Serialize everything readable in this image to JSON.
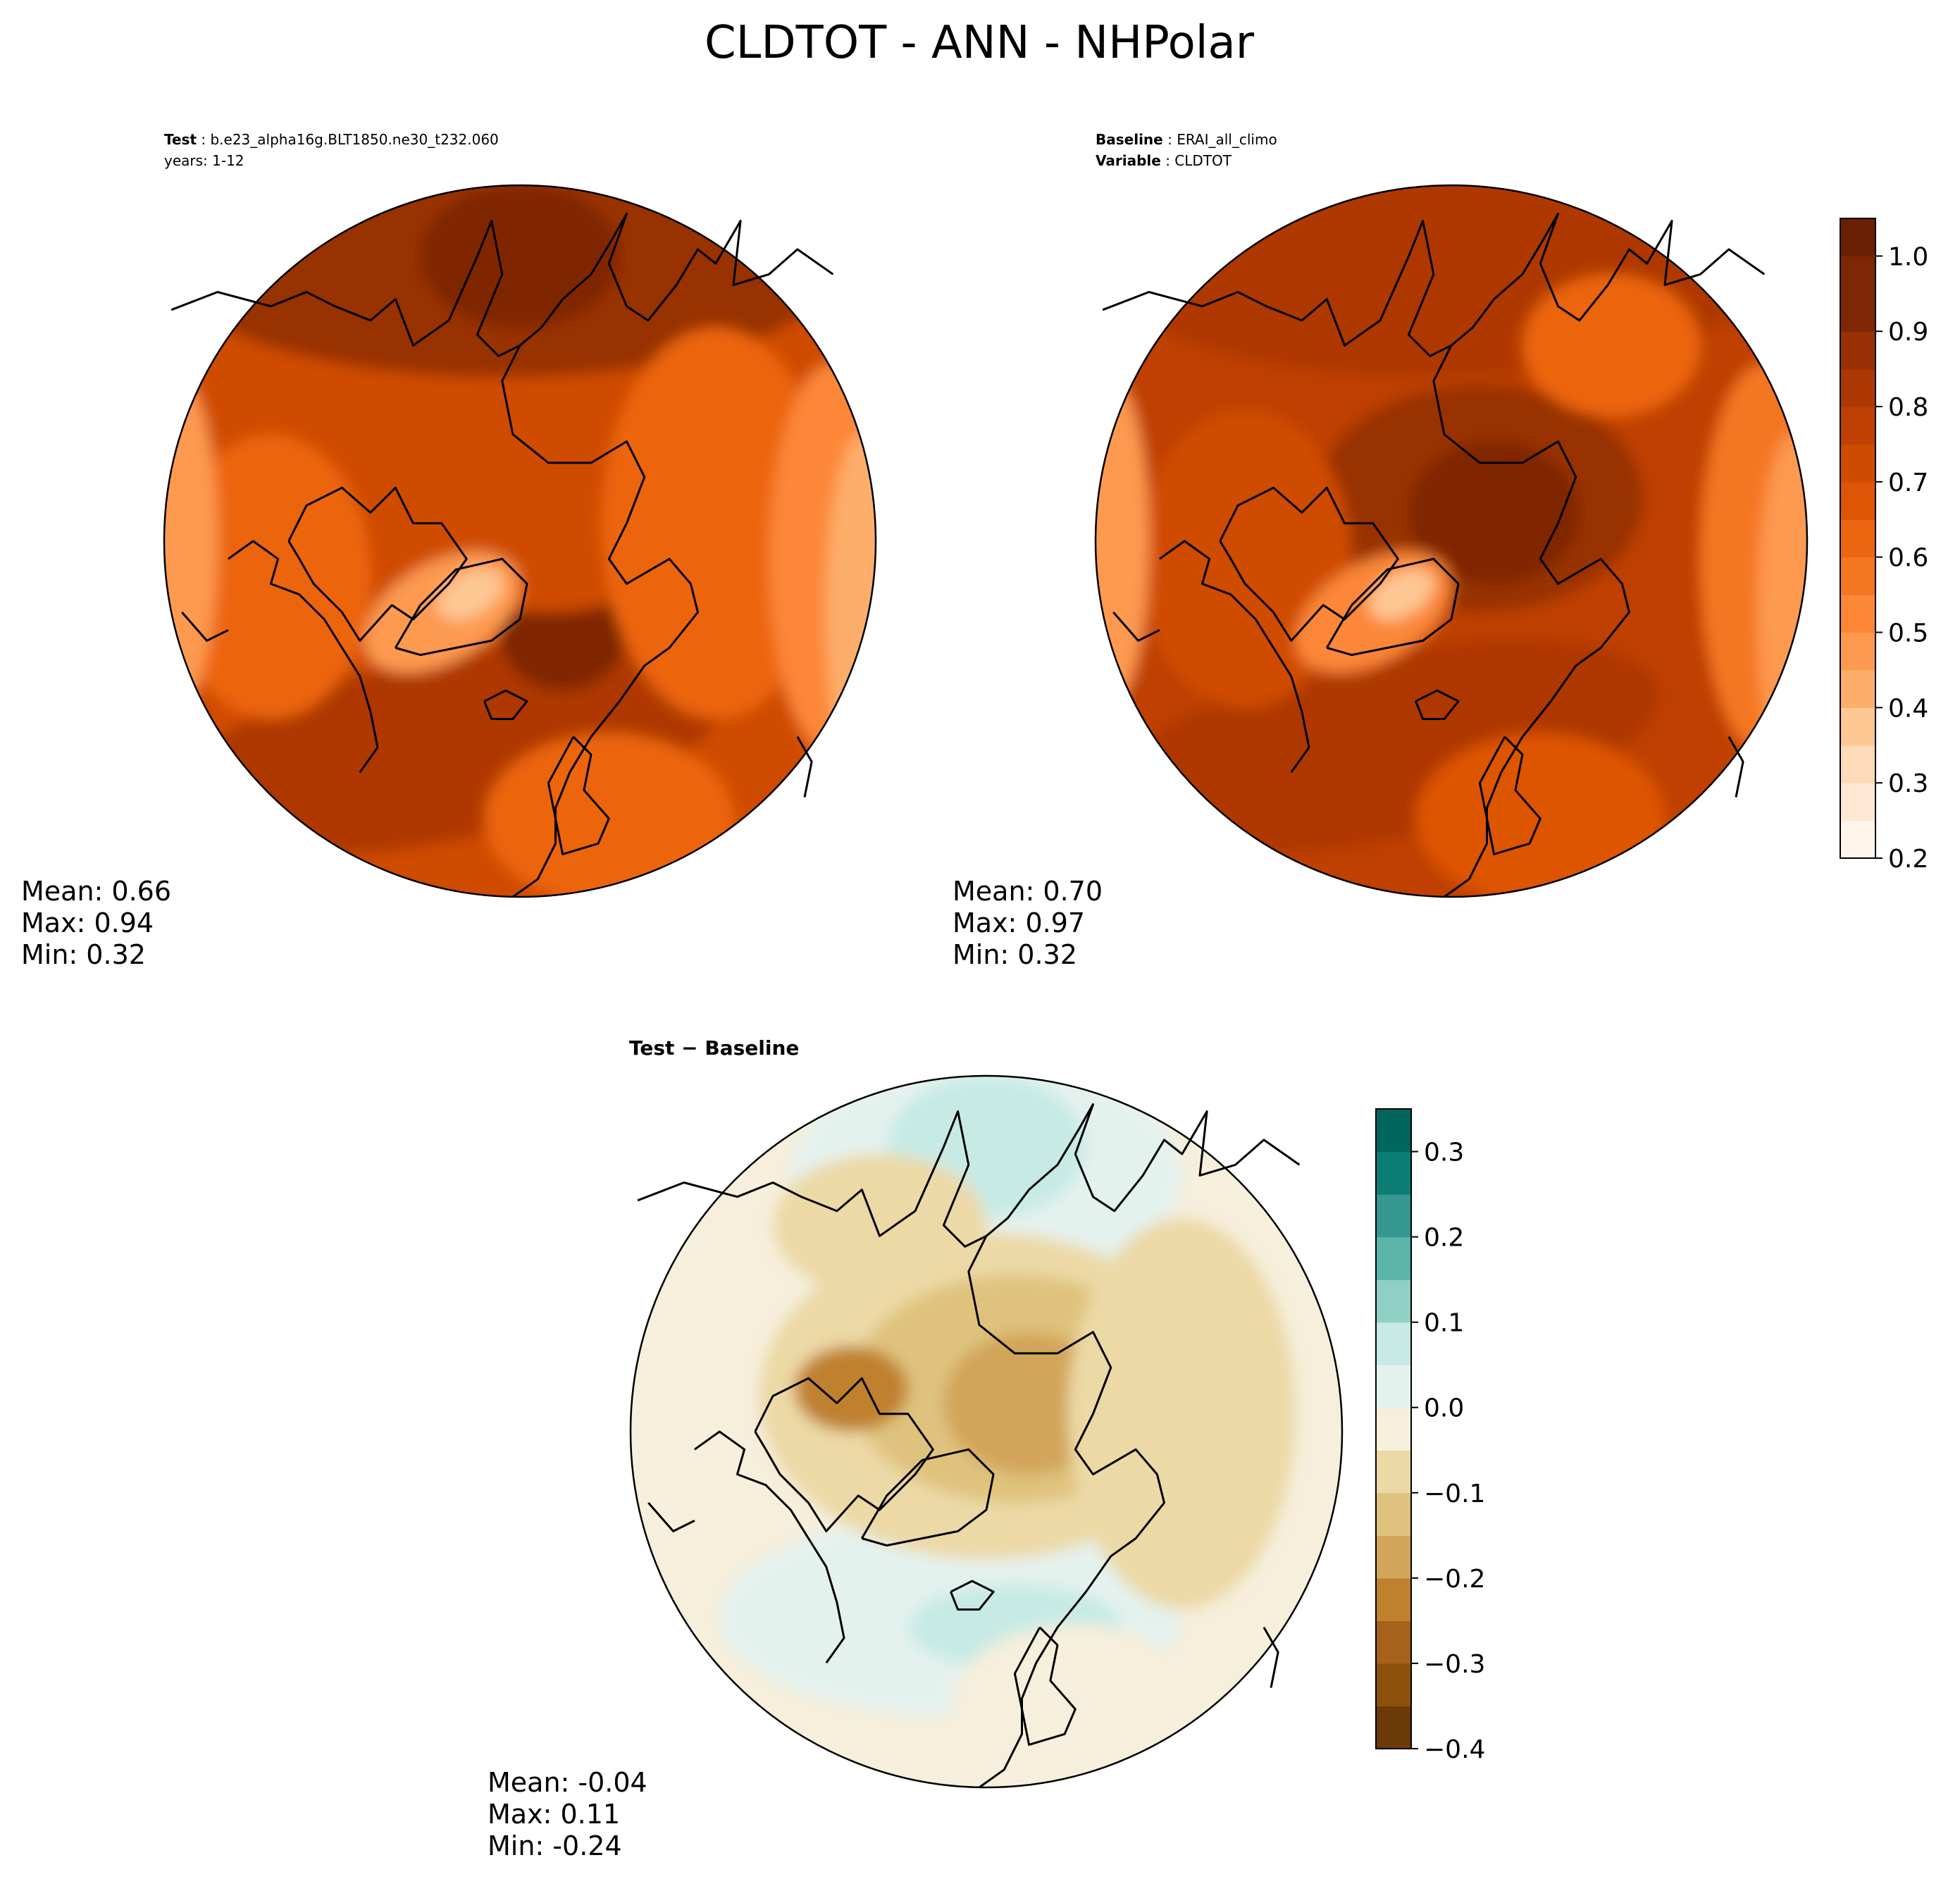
{
  "title": "CLDTOT - ANN - NHPolar",
  "chart_data": [
    {
      "type": "heatmap",
      "projection": "north-polar-stereographic",
      "panel": "test",
      "header": [
        {
          "label": "Test",
          "value": "b.e23_alpha16g.BLT1850.ne30_t232.060"
        },
        {
          "label": "",
          "value": "years: 1-12"
        }
      ],
      "stats": {
        "mean": "Mean:  0.66",
        "max": "Max:  0.94",
        "min": "Min:  0.32"
      },
      "colorbar": "shared-right",
      "regions": [
        {
          "name": "background",
          "value": 0.72
        },
        {
          "name": "pacific-band",
          "value": 0.85
        },
        {
          "name": "pacific-core",
          "value": 0.93
        },
        {
          "name": "atlantic-band",
          "value": 0.83
        },
        {
          "name": "greenland-sea",
          "value": 0.9
        },
        {
          "name": "arctic-ocean",
          "value": 0.74
        },
        {
          "name": "canada-south",
          "value": 0.64
        },
        {
          "name": "europe",
          "value": 0.6
        },
        {
          "name": "siberia",
          "value": 0.6
        },
        {
          "name": "greenland",
          "value": 0.48
        },
        {
          "name": "greenland-summit",
          "value": 0.36
        },
        {
          "name": "asia-interior",
          "value": 0.52
        },
        {
          "name": "rim-west",
          "value": 0.46
        },
        {
          "name": "rim-east",
          "value": 0.44
        }
      ]
    },
    {
      "type": "heatmap",
      "projection": "north-polar-stereographic",
      "panel": "baseline",
      "header": [
        {
          "label": "Baseline",
          "value": "ERAI_all_climo"
        },
        {
          "label": "Variable",
          "value": "CLDTOT"
        }
      ],
      "stats": {
        "mean": "Mean:  0.70",
        "max": "Max:  0.97",
        "min": "Min:  0.32"
      },
      "colorbar": {
        "levels": [
          0.2,
          0.25,
          0.3,
          0.35,
          0.4,
          0.45,
          0.5,
          0.55,
          0.6,
          0.65,
          0.7,
          0.75,
          0.8,
          0.85,
          0.9,
          0.95,
          1.0,
          1.05
        ],
        "colors": [
          "#fff5eb",
          "#fee8d3",
          "#fddbb8",
          "#fdc794",
          "#fdae6b",
          "#fd9a50",
          "#fc8737",
          "#f57622",
          "#ec6511",
          "#de5506",
          "#cf4b02",
          "#bf4002",
          "#ae3803",
          "#983004",
          "#7f2704",
          "#7f2704",
          "#6b2003"
        ],
        "ticks": [
          "0.2",
          "0.3",
          "0.4",
          "0.5",
          "0.6",
          "0.7",
          "0.8",
          "0.9",
          "1.0"
        ],
        "range": [
          0.2,
          1.05
        ]
      },
      "regions": [
        {
          "name": "background",
          "value": 0.76
        },
        {
          "name": "pacific-band",
          "value": 0.83
        },
        {
          "name": "atlantic-band",
          "value": 0.82
        },
        {
          "name": "arctic-ocean",
          "value": 0.87
        },
        {
          "name": "arctic-core",
          "value": 0.9
        },
        {
          "name": "canada",
          "value": 0.72
        },
        {
          "name": "europe",
          "value": 0.68
        },
        {
          "name": "siberia-east",
          "value": 0.6
        },
        {
          "name": "greenland",
          "value": 0.5
        },
        {
          "name": "greenland-summit",
          "value": 0.38
        },
        {
          "name": "asia-interior",
          "value": 0.55
        },
        {
          "name": "rim-west",
          "value": 0.48
        },
        {
          "name": "rim-east",
          "value": 0.45
        }
      ]
    },
    {
      "type": "heatmap",
      "projection": "north-polar-stereographic",
      "panel": "difference",
      "header": [
        {
          "label": "Test − Baseline",
          "value": ""
        }
      ],
      "stats": {
        "mean": "Mean: -0.04",
        "max": "Max:  0.11",
        "min": "Min: -0.24"
      },
      "colorbar": {
        "levels": [
          -0.4,
          -0.35,
          -0.3,
          -0.25,
          -0.2,
          -0.15,
          -0.1,
          -0.05,
          0.0,
          0.05,
          0.1,
          0.15,
          0.2,
          0.25,
          0.3,
          0.35
        ],
        "colors": [
          "#6b3a07",
          "#8c510a",
          "#a6611a",
          "#bf812d",
          "#d2a55a",
          "#dfc27d",
          "#ecd9a6",
          "#f6efdb",
          "#e4f2ee",
          "#c7eae5",
          "#8ed0c3",
          "#5ab4a7",
          "#35978f",
          "#0b7d74",
          "#01665e"
        ],
        "ticks": [
          "−0.4",
          "−0.3",
          "−0.2",
          "−0.1",
          "0.0",
          "0.1",
          "0.2",
          "0.3"
        ],
        "range": [
          -0.4,
          0.35
        ]
      },
      "regions": [
        {
          "name": "background",
          "value": -0.02
        },
        {
          "name": "pacific",
          "value": 0.03
        },
        {
          "name": "pacific-core",
          "value": 0.07
        },
        {
          "name": "atlantic",
          "value": 0.02
        },
        {
          "name": "atlantic-core",
          "value": 0.06
        },
        {
          "name": "arctic-ring",
          "value": -0.08
        },
        {
          "name": "arctic-ocean",
          "value": -0.13
        },
        {
          "name": "arctic-core",
          "value": -0.18
        },
        {
          "name": "archipelago",
          "value": -0.22
        },
        {
          "name": "siberia",
          "value": -0.06
        },
        {
          "name": "europe",
          "value": -0.04
        },
        {
          "name": "alaska",
          "value": -0.07
        }
      ]
    }
  ]
}
